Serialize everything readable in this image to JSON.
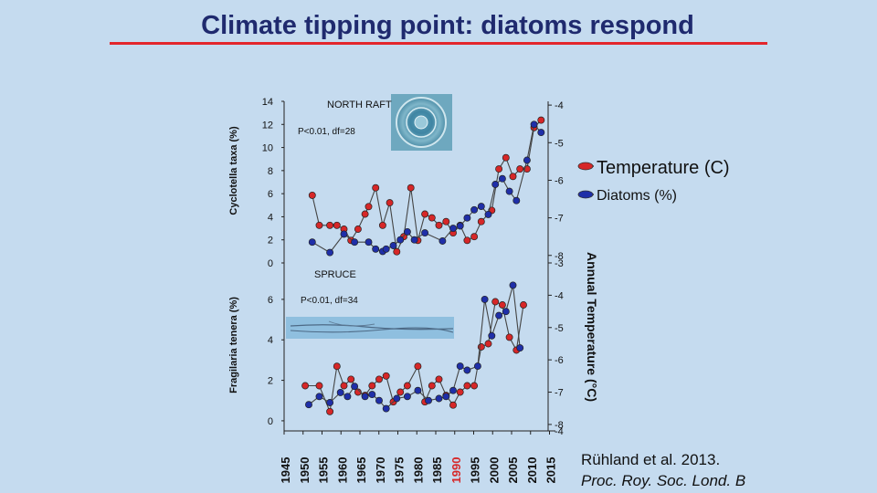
{
  "slide": {
    "title": "Climate tipping point: diatoms respond",
    "legend": {
      "temperature": "Temperature (C)",
      "diatoms": "Diatoms (%)"
    },
    "citation": {
      "authors": "Rühland et al. 2013.",
      "journal": "Proc. Roy. Soc. Lond. B"
    },
    "right_axis_label": "Annual Temperature (°C)",
    "colors": {
      "temperature": "#d62728",
      "diatoms": "#1f2fa8",
      "line": "#444444",
      "title": "#1f2a6e",
      "rule": "#e3262c",
      "highlight_year": "#d62728"
    }
  },
  "chart_data": [
    {
      "type": "line",
      "panel": "NORTH RAFT",
      "stat": "P<0.01, df=28",
      "ylabel": "Cyclotella taxa (%)",
      "ylim": [
        0,
        14
      ],
      "yticks": [
        0,
        2,
        4,
        6,
        8,
        10,
        12,
        14
      ],
      "y2lim": [
        -8.2,
        -3.9
      ],
      "y2ticks": [
        -4,
        -5,
        -6,
        -7,
        -8
      ],
      "xlim": [
        1940,
        2015
      ],
      "series": [
        {
          "name": "Temperature (C)",
          "axis": "right",
          "x": [
            1948,
            1950,
            1953,
            1955,
            1957,
            1959,
            1961,
            1963,
            1964,
            1966,
            1968,
            1970,
            1972,
            1974,
            1976,
            1978,
            1980,
            1982,
            1984,
            1986,
            1988,
            1990,
            1992,
            1994,
            1996,
            1999,
            2001,
            2003,
            2005,
            2007,
            2009,
            2011,
            2013
          ],
          "y": [
            -6.4,
            -7.2,
            -7.2,
            -7.2,
            -7.3,
            -7.6,
            -7.3,
            -6.9,
            -6.7,
            -6.2,
            -7.2,
            -6.6,
            -7.9,
            -7.5,
            -6.2,
            -7.6,
            -6.9,
            -7.0,
            -7.2,
            -7.1,
            -7.4,
            -7.2,
            -7.6,
            -7.5,
            -7.1,
            -6.8,
            -5.7,
            -5.4,
            -5.9,
            -5.7,
            -5.7,
            -4.6,
            -4.4
          ]
        },
        {
          "name": "Diatoms (%)",
          "axis": "left",
          "x": [
            1948,
            1953,
            1957,
            1960,
            1964,
            1966,
            1968,
            1969,
            1971,
            1973,
            1975,
            1977,
            1980,
            1985,
            1988,
            1990,
            1992,
            1994,
            1996,
            1998,
            2000,
            2002,
            2004,
            2006,
            2009,
            2011,
            2013
          ],
          "y": [
            1.8,
            0.9,
            2.5,
            1.8,
            1.8,
            1.2,
            1.0,
            1.2,
            1.5,
            2.0,
            2.7,
            2.0,
            2.6,
            1.9,
            3.0,
            3.2,
            3.9,
            4.6,
            4.9,
            4.2,
            6.8,
            7.3,
            6.2,
            5.4,
            8.9,
            12.0,
            11.3
          ]
        }
      ]
    },
    {
      "type": "line",
      "panel": "SPRUCE",
      "stat": "P<0.01, df=34",
      "ylabel": "Fragilaria tenera (%)",
      "ylim": [
        -0.5,
        7.8
      ],
      "yticks": [
        0,
        2,
        4,
        6
      ],
      "y2lim": [
        -8.2,
        -3.0
      ],
      "y2ticks": [
        -3,
        -4,
        -5,
        -6,
        -7,
        -8
      ],
      "xlim": [
        1940,
        2015
      ],
      "xticks": [
        1945,
        1950,
        1955,
        1960,
        1965,
        1970,
        1975,
        1980,
        1985,
        1990,
        1995,
        2000,
        2005,
        2010,
        2015
      ],
      "highlight_tick": 1990,
      "series": [
        {
          "name": "Temperature (C)",
          "axis": "right",
          "x": [
            1946,
            1950,
            1953,
            1955,
            1957,
            1959,
            1961,
            1963,
            1965,
            1967,
            1969,
            1971,
            1973,
            1975,
            1978,
            1980,
            1982,
            1984,
            1986,
            1988,
            1990,
            1992,
            1994,
            1996,
            1998,
            2000,
            2002,
            2004,
            2006,
            2008
          ],
          "y": [
            -6.8,
            -6.8,
            -7.6,
            -6.2,
            -6.8,
            -6.6,
            -7.0,
            -7.1,
            -6.8,
            -6.6,
            -6.5,
            -7.3,
            -7.0,
            -6.8,
            -6.2,
            -7.3,
            -6.8,
            -6.6,
            -7.1,
            -7.4,
            -7.0,
            -6.8,
            -6.8,
            -5.6,
            -5.5,
            -4.2,
            -4.3,
            -5.3,
            -5.7,
            -4.3
          ]
        },
        {
          "name": "Diatoms (%)",
          "axis": "left",
          "x": [
            1947,
            1950,
            1953,
            1956,
            1958,
            1960,
            1963,
            1965,
            1967,
            1969,
            1972,
            1975,
            1978,
            1981,
            1984,
            1986,
            1988,
            1990,
            1992,
            1995,
            1997,
            1999,
            2001,
            2003,
            2005,
            2007
          ],
          "y": [
            0.8,
            1.2,
            0.9,
            1.4,
            1.2,
            1.7,
            1.2,
            1.3,
            1.0,
            0.6,
            1.1,
            1.2,
            1.5,
            1.0,
            1.1,
            1.2,
            1.5,
            2.7,
            2.5,
            2.7,
            6.0,
            4.2,
            5.2,
            5.4,
            6.7,
            3.6
          ]
        }
      ]
    }
  ]
}
